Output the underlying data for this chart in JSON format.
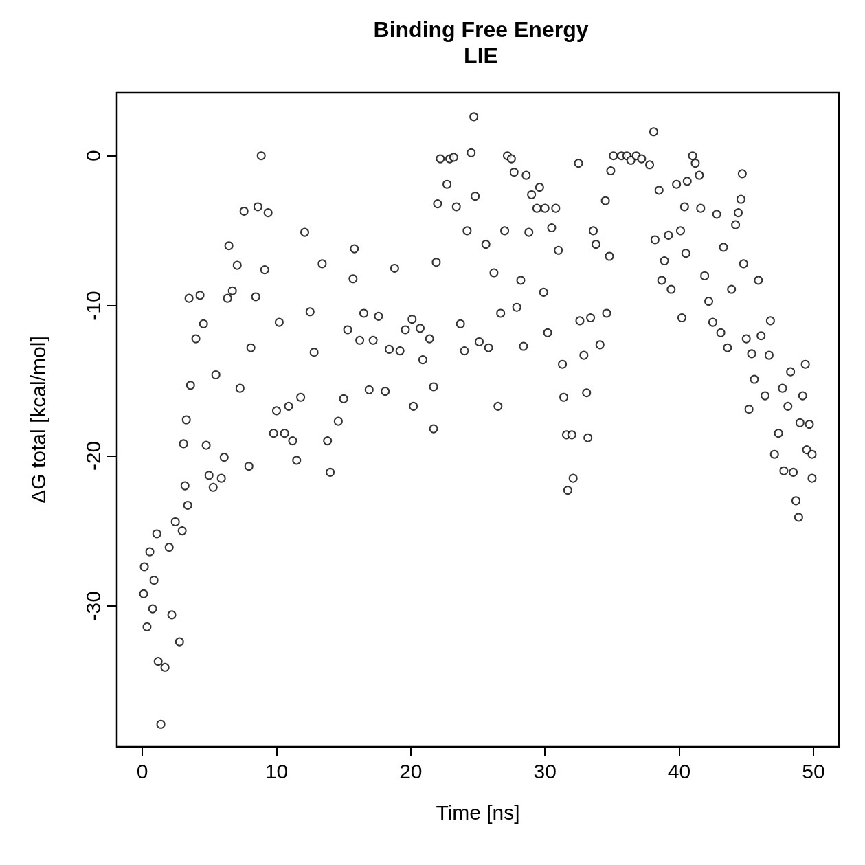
{
  "chart_data": {
    "type": "scatter",
    "title": "Binding Free Energy",
    "subtitle": "LIE",
    "xlabel": "Time [ns]",
    "ylabel": "ΔG total [kcal/mol]",
    "marker": "circle",
    "grid": false,
    "xlim": [
      -1.9,
      51.9
    ],
    "ylim": [
      -39.4,
      4.2
    ],
    "xticks": [
      0,
      10,
      20,
      30,
      40,
      50
    ],
    "yticks": [
      -30,
      -20,
      -10,
      0
    ],
    "series": [
      {
        "color": "#000000",
        "x": [
          0.1,
          0.15,
          0.35,
          0.56,
          0.77,
          0.87,
          1.08,
          1.18,
          1.38,
          1.69,
          2.0,
          2.2,
          2.46,
          2.77,
          2.97,
          3.07,
          3.18,
          3.38,
          3.28,
          3.48,
          3.59,
          3.99,
          4.3,
          4.56,
          4.76,
          4.97,
          5.28,
          5.48,
          5.89,
          6.1,
          6.35,
          6.45,
          6.71,
          7.07,
          7.28,
          7.58,
          7.94,
          8.09,
          8.45,
          8.61,
          8.86,
          9.12,
          9.37,
          9.78,
          10.0,
          10.2,
          10.6,
          10.9,
          11.2,
          11.5,
          11.8,
          12.1,
          12.5,
          12.8,
          13.4,
          13.8,
          14.0,
          14.6,
          15.0,
          15.3,
          15.7,
          15.8,
          16.2,
          16.5,
          16.9,
          17.2,
          17.6,
          18.1,
          18.4,
          18.8,
          19.2,
          19.6,
          20.1,
          20.2,
          20.7,
          20.9,
          21.4,
          21.7,
          21.7,
          21.9,
          22.0,
          22.2,
          22.7,
          22.9,
          23.2,
          23.4,
          23.7,
          24.0,
          24.2,
          24.5,
          24.7,
          24.8,
          25.1,
          25.6,
          25.8,
          26.2,
          26.5,
          26.7,
          27.0,
          27.2,
          27.5,
          27.7,
          27.9,
          28.2,
          28.4,
          28.6,
          28.8,
          29.0,
          29.4,
          29.6,
          29.9,
          30.0,
          30.2,
          30.5,
          30.8,
          31.0,
          31.3,
          31.4,
          31.6,
          31.7,
          32.0,
          32.1,
          32.5,
          32.6,
          32.9,
          33.1,
          33.2,
          33.4,
          33.6,
          33.8,
          34.1,
          34.5,
          34.6,
          34.8,
          34.9,
          35.1,
          35.7,
          36.1,
          36.4,
          36.8,
          37.2,
          37.8,
          38.1,
          38.2,
          38.5,
          38.7,
          38.9,
          39.2,
          39.4,
          39.8,
          40.1,
          40.2,
          40.4,
          40.5,
          40.6,
          41.0,
          41.2,
          41.5,
          41.6,
          41.9,
          42.2,
          42.5,
          42.8,
          43.1,
          43.3,
          43.6,
          43.9,
          44.2,
          44.4,
          44.6,
          44.7,
          44.8,
          45.0,
          45.2,
          45.4,
          45.6,
          45.9,
          46.1,
          46.4,
          46.7,
          46.8,
          47.1,
          47.4,
          47.7,
          47.8,
          48.1,
          48.3,
          48.5,
          48.7,
          48.9,
          49.0,
          49.2,
          49.4,
          49.5,
          49.7,
          49.9,
          49.9
        ],
        "values": [
          -29.2,
          -27.4,
          -31.4,
          -26.4,
          -30.2,
          -28.3,
          -25.2,
          -33.7,
          -37.9,
          -34.1,
          -26.1,
          -30.6,
          -24.4,
          -32.4,
          -25.0,
          -19.2,
          -22.0,
          -23.3,
          -17.6,
          -9.5,
          -15.3,
          -12.2,
          -9.3,
          -11.2,
          -19.3,
          -21.3,
          -22.1,
          -14.6,
          -21.5,
          -20.1,
          -9.5,
          -6.0,
          -9.0,
          -7.3,
          -15.5,
          -3.7,
          -20.7,
          -12.8,
          -9.4,
          -3.4,
          0,
          -7.6,
          -3.8,
          -18.5,
          -17.0,
          -11.1,
          -18.5,
          -16.7,
          -19.0,
          -20.3,
          -16.1,
          -5.1,
          -10.4,
          -13.1,
          -7.2,
          -19.0,
          -21.1,
          -17.7,
          -16.2,
          -11.6,
          -8.2,
          -6.2,
          -12.3,
          -10.5,
          -15.6,
          -12.3,
          -10.7,
          -15.7,
          -12.9,
          -7.5,
          -13.0,
          -11.6,
          -10.9,
          -16.7,
          -11.5,
          -13.6,
          -12.2,
          -15.4,
          -18.2,
          -7.1,
          -3.2,
          -0.2,
          -1.9,
          -0.2,
          -0.1,
          -3.4,
          -11.2,
          -13.0,
          -5.0,
          0.2,
          2.6,
          -2.7,
          -12.4,
          -5.9,
          -12.8,
          -7.8,
          -16.7,
          -10.5,
          -5.0,
          0,
          -0.2,
          -1.1,
          -10.1,
          -8.3,
          -12.7,
          -1.3,
          -5.1,
          -2.6,
          -3.5,
          -2.1,
          -9.1,
          -3.5,
          -11.8,
          -4.8,
          -3.5,
          -6.3,
          -13.9,
          -16.1,
          -18.6,
          -22.3,
          -18.6,
          -21.5,
          -0.5,
          -11.0,
          -13.3,
          -15.8,
          -18.8,
          -10.8,
          -5.0,
          -5.9,
          -12.6,
          -3.0,
          -10.5,
          -6.7,
          -1.0,
          0,
          0,
          0,
          -0.3,
          0,
          -0.2,
          -0.6,
          1.6,
          -5.6,
          -2.3,
          -8.3,
          -7.0,
          -5.3,
          -8.9,
          -1.9,
          -5.0,
          -10.8,
          -3.4,
          -6.5,
          -1.7,
          0,
          -0.5,
          -1.3,
          -3.5,
          -8.0,
          -9.7,
          -11.1,
          -3.9,
          -11.8,
          -6.1,
          -12.8,
          -8.9,
          -4.6,
          -3.8,
          -2.9,
          -1.2,
          -7.2,
          -12.2,
          -16.9,
          -13.2,
          -14.9,
          -8.3,
          -12.0,
          -16.0,
          -13.3,
          -11.0,
          -19.9,
          -18.5,
          -15.5,
          -21.0,
          -16.7,
          -14.4,
          -21.1,
          -23.0,
          -24.1,
          -17.8,
          -16.0,
          -13.9,
          -19.6,
          -17.9,
          -19.9,
          -21.5
        ]
      }
    ]
  }
}
